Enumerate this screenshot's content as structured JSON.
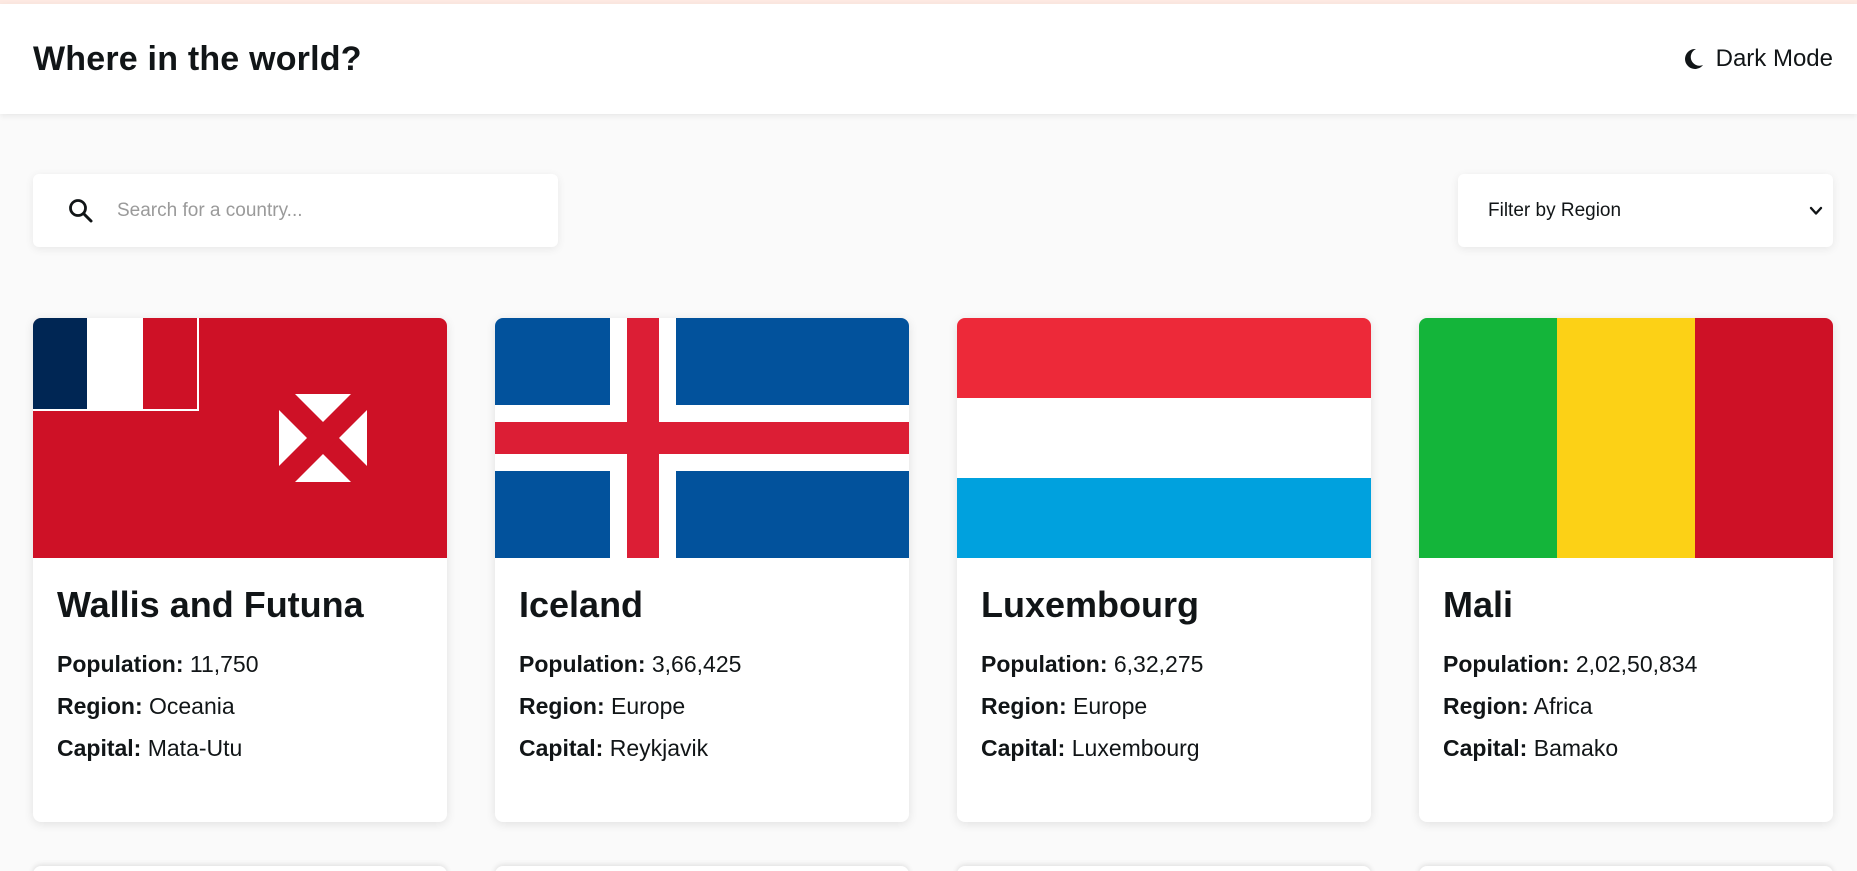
{
  "header": {
    "title": "Where in the world?",
    "mode_label": "Dark Mode",
    "mode_icon": "moon-icon"
  },
  "search": {
    "placeholder": "Search for a country...",
    "value": "",
    "icon": "search-icon"
  },
  "filter": {
    "selected_label": "Filter by Region",
    "icon": "chevron-down-icon"
  },
  "labels": {
    "population": "Population:",
    "region": "Region:",
    "capital": "Capital:"
  },
  "countries": [
    {
      "name": "Wallis and Futuna",
      "population": "11,750",
      "region": "Oceania",
      "capital": "Mata-Utu",
      "flag": "wallis-and-futuna-flag"
    },
    {
      "name": "Iceland",
      "population": "3,66,425",
      "region": "Europe",
      "capital": "Reykjavik",
      "flag": "iceland-flag"
    },
    {
      "name": "Luxembourg",
      "population": "6,32,275",
      "region": "Europe",
      "capital": "Luxembourg",
      "flag": "luxembourg-flag"
    },
    {
      "name": "Mali",
      "population": "2,02,50,834",
      "region": "Africa",
      "capital": "Bamako",
      "flag": "mali-flag"
    }
  ],
  "colors": {
    "background": "#fafafa",
    "element": "#ffffff",
    "text": "#111517",
    "wallis_red": "#ce1126",
    "wallis_navy": "#002654",
    "iceland_blue": "#02529c",
    "iceland_red": "#dc1e35",
    "luxembourg_red": "#ed2939",
    "luxembourg_blue": "#00a1de",
    "mali_green": "#14b53a",
    "mali_yellow": "#fcd116",
    "mali_red": "#ce1126"
  }
}
